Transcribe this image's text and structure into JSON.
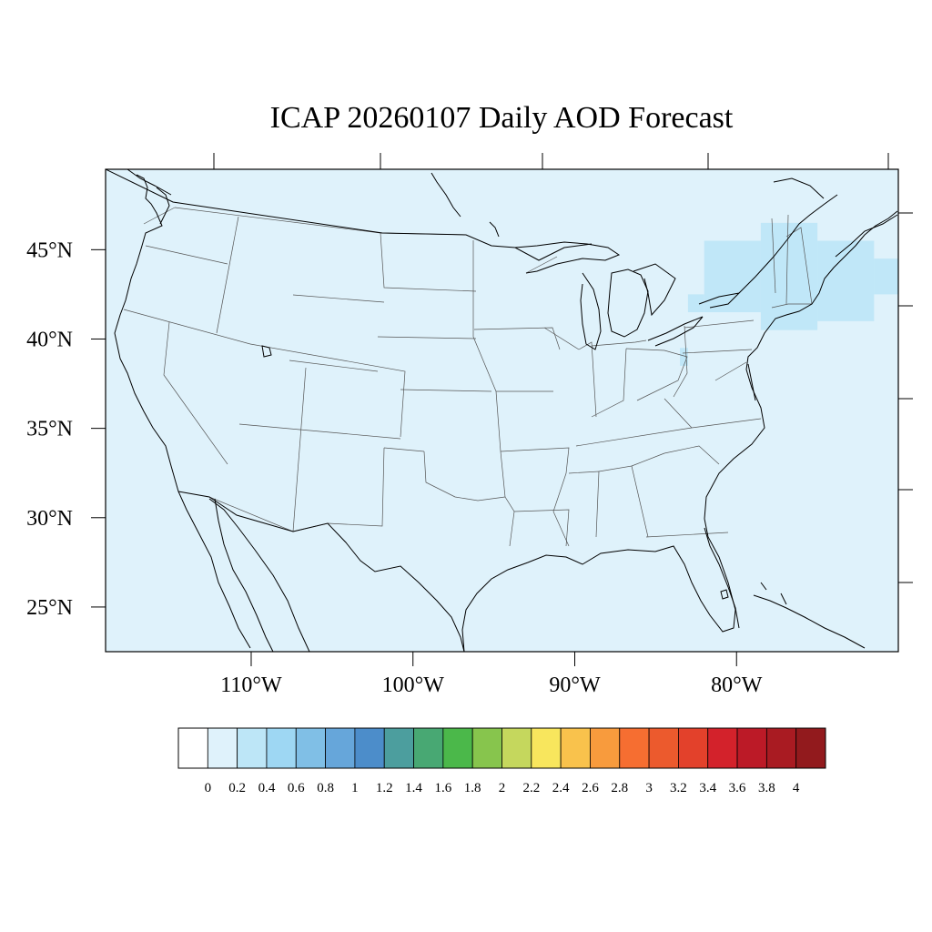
{
  "title": "ICAP 20260107 Daily AOD Forecast",
  "map": {
    "projection": "equidistant-cylindrical",
    "lon_range": [
      -119,
      -70
    ],
    "lat_range": [
      22.5,
      49.5
    ],
    "background_color": "#dff2fb",
    "coastline_color": "#000000",
    "state_border_color": "#555555"
  },
  "lat_ticks": [
    {
      "value": 45,
      "label": "45°N"
    },
    {
      "value": 40,
      "label": "40°N"
    },
    {
      "value": 35,
      "label": "35°N"
    },
    {
      "value": 30,
      "label": "30°N"
    },
    {
      "value": 25,
      "label": "25°N"
    }
  ],
  "lon_ticks": [
    {
      "value": -110,
      "label": "110°W"
    },
    {
      "value": -100,
      "label": "100°W"
    },
    {
      "value": -90,
      "label": "90°W"
    },
    {
      "value": -80,
      "label": "80°W"
    }
  ],
  "chart_data": {
    "type": "heatmap",
    "title": "ICAP 20260107 Daily AOD Forecast",
    "variable": "AOD",
    "date": "20260107",
    "cells": [
      {
        "lon0": -82,
        "lon1": -78.5,
        "lat0": 41.5,
        "lat1": 45.5,
        "bin": 2
      },
      {
        "lon0": -78.5,
        "lon1": -75,
        "lat0": 40.5,
        "lat1": 46.5,
        "bin": 2
      },
      {
        "lon0": -75,
        "lon1": -71.5,
        "lat0": 41,
        "lat1": 45.5,
        "bin": 2
      },
      {
        "lon0": -71.5,
        "lon1": -70,
        "lat0": 42.5,
        "lat1": 44.5,
        "bin": 2
      },
      {
        "lon0": -83,
        "lon1": -82,
        "lat0": 41.5,
        "lat1": 42.5,
        "bin": 2
      },
      {
        "lon0": -83.5,
        "lon1": -83,
        "lat0": 38.5,
        "lat1": 39.5,
        "bin": 2
      }
    ],
    "colorbar": {
      "levels": [
        "0",
        "0.2",
        "0.4",
        "0.6",
        "0.8",
        "1",
        "1.2",
        "1.4",
        "1.6",
        "1.8",
        "2",
        "2.2",
        "2.4",
        "2.6",
        "2.8",
        "3",
        "3.2",
        "3.4",
        "3.6",
        "3.8",
        "4"
      ],
      "colors": [
        "#ffffff",
        "#dff2fb",
        "#bde6f7",
        "#9ed7f3",
        "#80bfe6",
        "#66a6da",
        "#4c8dca",
        "#4c9e9e",
        "#48a873",
        "#4bb84a",
        "#87c54d",
        "#c5d75d",
        "#f8e65d",
        "#f9c24c",
        "#f89b3d",
        "#f66e31",
        "#ec5a2d",
        "#e3412b",
        "#d3222b",
        "#bc1a27",
        "#a91b22",
        "#921a1d"
      ]
    }
  }
}
